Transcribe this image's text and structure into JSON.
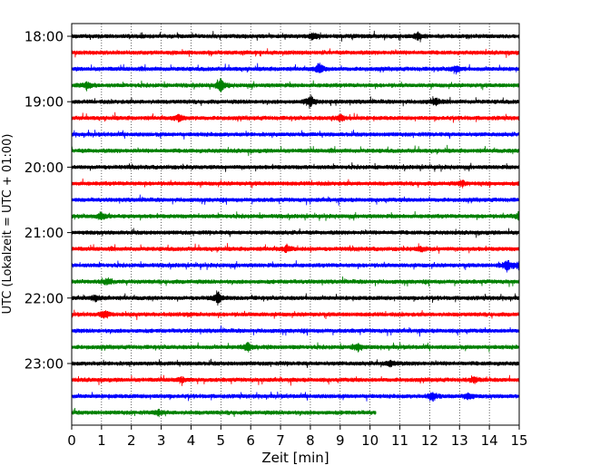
{
  "chart_data": {
    "type": "line",
    "subtype": "helicorder",
    "title": "",
    "xlabel": "Zeit  [min]",
    "ylabel": "UTC (Lokalzeit = UTC + 01:00)",
    "xlim": [
      0,
      15
    ],
    "x_ticks": [
      0,
      1,
      2,
      3,
      4,
      5,
      6,
      7,
      8,
      9,
      10,
      11,
      12,
      13,
      14,
      15
    ],
    "x_tick_labels": [
      "0",
      "1",
      "2",
      "3",
      "4",
      "5",
      "6",
      "7",
      "8",
      "9",
      "10",
      "11",
      "12",
      "13",
      "14",
      "15"
    ],
    "y_tick_labels": [
      "18:00",
      "19:00",
      "20:00",
      "21:00",
      "22:00",
      "23:00"
    ],
    "y_tick_rows": [
      0,
      4,
      8,
      12,
      16,
      20
    ],
    "grid": {
      "x": true,
      "style": "dotted"
    },
    "trace_colors": [
      "#000000",
      "#ff0000",
      "#0000ff",
      "#008000"
    ],
    "traces_count": 24,
    "minutes_per_trace": 15,
    "last_trace_end_min": 10.2,
    "events": [
      {
        "trace": 0,
        "x": 8.1,
        "amp": 0.5
      },
      {
        "trace": 0,
        "x": 11.6,
        "amp": 0.5
      },
      {
        "trace": 2,
        "x": 8.3,
        "amp": 0.8
      },
      {
        "trace": 2,
        "x": 12.9,
        "amp": 0.5
      },
      {
        "trace": 3,
        "x": 0.5,
        "amp": 0.6
      },
      {
        "trace": 3,
        "x": 5.0,
        "amp": 1.0
      },
      {
        "trace": 4,
        "x": 8.0,
        "amp": 0.9
      },
      {
        "trace": 4,
        "x": 12.2,
        "amp": 0.5
      },
      {
        "trace": 5,
        "x": 3.6,
        "amp": 0.5
      },
      {
        "trace": 5,
        "x": 9.0,
        "amp": 0.5
      },
      {
        "trace": 9,
        "x": 13.1,
        "amp": 0.4
      },
      {
        "trace": 11,
        "x": 1.0,
        "amp": 0.6
      },
      {
        "trace": 11,
        "x": 15.0,
        "amp": 0.6
      },
      {
        "trace": 13,
        "x": 7.2,
        "amp": 0.5
      },
      {
        "trace": 13,
        "x": 11.7,
        "amp": 0.4
      },
      {
        "trace": 14,
        "x": 14.6,
        "amp": 0.8
      },
      {
        "trace": 14,
        "x": 15.0,
        "amp": 0.6
      },
      {
        "trace": 15,
        "x": 1.2,
        "amp": 0.5
      },
      {
        "trace": 16,
        "x": 4.9,
        "amp": 0.9
      },
      {
        "trace": 16,
        "x": 0.8,
        "amp": 0.4
      },
      {
        "trace": 17,
        "x": 1.1,
        "amp": 0.7
      },
      {
        "trace": 19,
        "x": 5.9,
        "amp": 0.6
      },
      {
        "trace": 19,
        "x": 9.6,
        "amp": 0.5
      },
      {
        "trace": 20,
        "x": 10.7,
        "amp": 0.4
      },
      {
        "trace": 21,
        "x": 3.7,
        "amp": 0.4
      },
      {
        "trace": 21,
        "x": 13.5,
        "amp": 0.4
      },
      {
        "trace": 22,
        "x": 12.1,
        "amp": 0.7
      },
      {
        "trace": 22,
        "x": 13.3,
        "amp": 0.5
      },
      {
        "trace": 23,
        "x": 2.9,
        "amp": 0.4
      }
    ]
  }
}
